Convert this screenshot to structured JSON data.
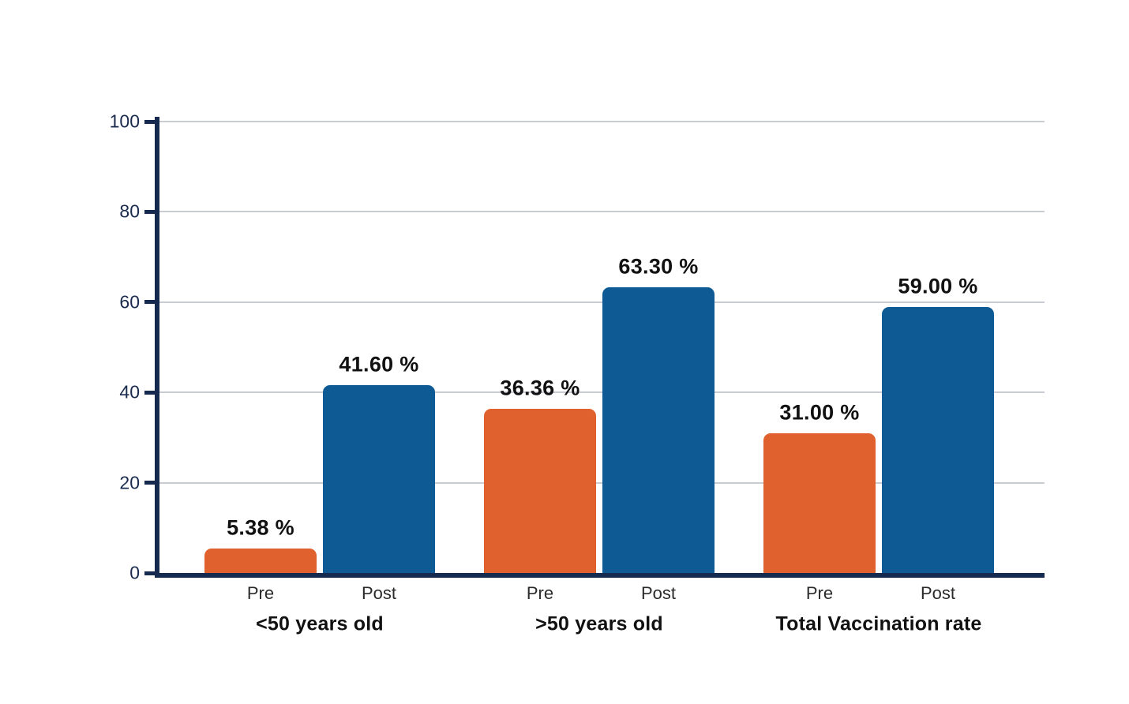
{
  "chart_data": {
    "type": "bar",
    "categories": [
      "<50 years old",
      ">50 years old",
      "Total Vaccination rate"
    ],
    "sub_categories": [
      "Pre",
      "Post"
    ],
    "series": [
      {
        "name": "Pre",
        "color": "#E0612D",
        "values": [
          5.38,
          36.36,
          31.0
        ],
        "labels": [
          "5.38 %",
          "36.36 %",
          "31.00 %"
        ]
      },
      {
        "name": "Post",
        "color": "#0E5A94",
        "values": [
          41.6,
          63.3,
          59.0
        ],
        "labels": [
          "41.60 %",
          "63.30 %",
          "59.00 %"
        ]
      }
    ],
    "ylim": [
      0,
      100
    ],
    "yticks": [
      0,
      20,
      40,
      60,
      80,
      100
    ],
    "grid": "horizontal",
    "legend_position": "none",
    "colors": {
      "axis": "#16294E",
      "gridline": "#C9CCD2",
      "tick_label": "#1B2B4E",
      "value_label": "#111111",
      "sub_label": "#2B2B2B",
      "category_label": "#111111",
      "background": "#FFFFFF"
    }
  }
}
